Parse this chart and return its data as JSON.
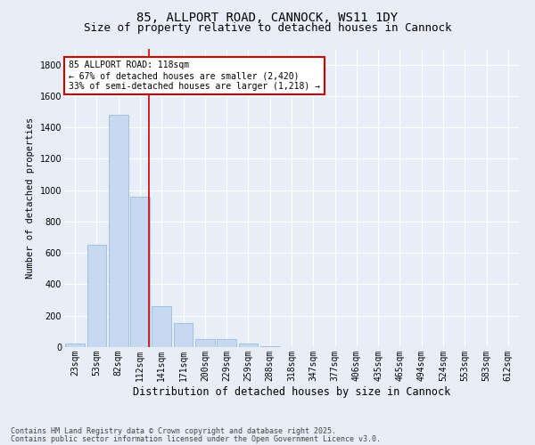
{
  "title1": "85, ALLPORT ROAD, CANNOCK, WS11 1DY",
  "title2": "Size of property relative to detached houses in Cannock",
  "xlabel": "Distribution of detached houses by size in Cannock",
  "ylabel": "Number of detached properties",
  "categories": [
    "23sqm",
    "53sqm",
    "82sqm",
    "112sqm",
    "141sqm",
    "171sqm",
    "200sqm",
    "229sqm",
    "259sqm",
    "288sqm",
    "318sqm",
    "347sqm",
    "377sqm",
    "406sqm",
    "435sqm",
    "465sqm",
    "494sqm",
    "524sqm",
    "553sqm",
    "583sqm",
    "612sqm"
  ],
  "values": [
    25,
    650,
    1480,
    960,
    260,
    155,
    50,
    50,
    20,
    5,
    2,
    1,
    1,
    0,
    0,
    0,
    0,
    0,
    0,
    0,
    0
  ],
  "bar_color": "#c6d9f1",
  "bar_edge_color": "#8ab4d8",
  "vline_color": "#cc0000",
  "vline_xindex": 3.43,
  "annotation_line1": "85 ALLPORT ROAD: 118sqm",
  "annotation_line2": "← 67% of detached houses are smaller (2,420)",
  "annotation_line3": "33% of semi-detached houses are larger (1,218) →",
  "annotation_box_color": "#cc0000",
  "ylim": [
    0,
    1900
  ],
  "yticks": [
    0,
    200,
    400,
    600,
    800,
    1000,
    1200,
    1400,
    1600,
    1800
  ],
  "bg_color": "#e8eef7",
  "footer1": "Contains HM Land Registry data © Crown copyright and database right 2025.",
  "footer2": "Contains public sector information licensed under the Open Government Licence v3.0.",
  "title1_fontsize": 10,
  "title2_fontsize": 9,
  "xlabel_fontsize": 8.5,
  "ylabel_fontsize": 7.5,
  "tick_fontsize": 7,
  "annotation_fontsize": 7,
  "footer_fontsize": 6
}
